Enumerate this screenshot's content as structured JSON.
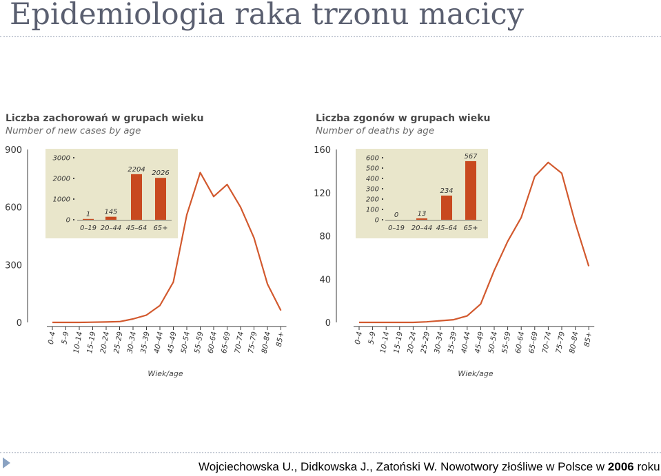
{
  "slide": {
    "title": "Epidemiologia raka trzonu macicy",
    "citation_main": "Wojciechowska U., Didkowska J., Zatoński W. Nowotwory złośliwe w Polsce w ",
    "citation_year": "2006",
    "citation_end": " roku."
  },
  "colors": {
    "line": "#d2592e",
    "bar": "#c8491f",
    "inset_bg": "#e9e6cb",
    "axis": "#3a3a3a",
    "title_text": "#5a5f70"
  },
  "chart_data": [
    {
      "type": "line",
      "title": "Liczba zachorowań w grupach wieku",
      "subtitle": "Number of new cases by age",
      "xlabel": "Wiek/age",
      "ylabel": "",
      "x": [
        "0–4",
        "5–9",
        "10–14",
        "15–19",
        "20–24",
        "25–29",
        "30–34",
        "35–39",
        "40–44",
        "45–49",
        "50–54",
        "55–59",
        "60–64",
        "65–69",
        "70–74",
        "75–79",
        "80–84",
        "85+"
      ],
      "y_ticks": [
        0,
        300,
        600,
        900
      ],
      "ylim": [
        0,
        900
      ],
      "series": [
        {
          "values": [
            0,
            0,
            0,
            1,
            2,
            4,
            18,
            38,
            88,
            210,
            560,
            780,
            655,
            718,
            600,
            440,
            200,
            62
          ]
        }
      ],
      "grid": false,
      "inset": {
        "type": "bar",
        "categories": [
          "0–19",
          "20–44",
          "45–64",
          "65+"
        ],
        "values": [
          1,
          145,
          2204,
          2026
        ],
        "labels": [
          "1",
          "145",
          "2204",
          "2026"
        ],
        "y_ticks": [
          0,
          1000,
          2000,
          3000
        ],
        "ylim": [
          0,
          3000
        ]
      }
    },
    {
      "type": "line",
      "title": "Liczba zgonów w grupach wieku",
      "subtitle": "Number of deaths by age",
      "xlabel": "Wiek/age",
      "ylabel": "",
      "x": [
        "0–4",
        "5–9",
        "10–14",
        "15–19",
        "20–24",
        "25–29",
        "30–34",
        "35–39",
        "40–44",
        "45–49",
        "50–54",
        "55–59",
        "60–64",
        "65–69",
        "70–74",
        "75–79",
        "80–84",
        "85+"
      ],
      "y_ticks": [
        0,
        40,
        80,
        120,
        160
      ],
      "ylim": [
        0,
        160
      ],
      "series": [
        {
          "values": [
            0,
            0,
            0,
            0,
            0,
            0.5,
            1.5,
            2.5,
            6,
            17,
            48,
            75,
            97,
            135,
            148,
            138,
            92,
            52
          ]
        }
      ],
      "grid": false,
      "inset": {
        "type": "bar",
        "categories": [
          "0–19",
          "20–44",
          "45–64",
          "65+"
        ],
        "values": [
          0,
          13,
          234,
          567
        ],
        "labels": [
          "0",
          "13",
          "234",
          "567"
        ],
        "y_ticks": [
          0,
          100,
          200,
          300,
          400,
          500,
          600
        ],
        "ylim": [
          0,
          600
        ]
      }
    }
  ]
}
